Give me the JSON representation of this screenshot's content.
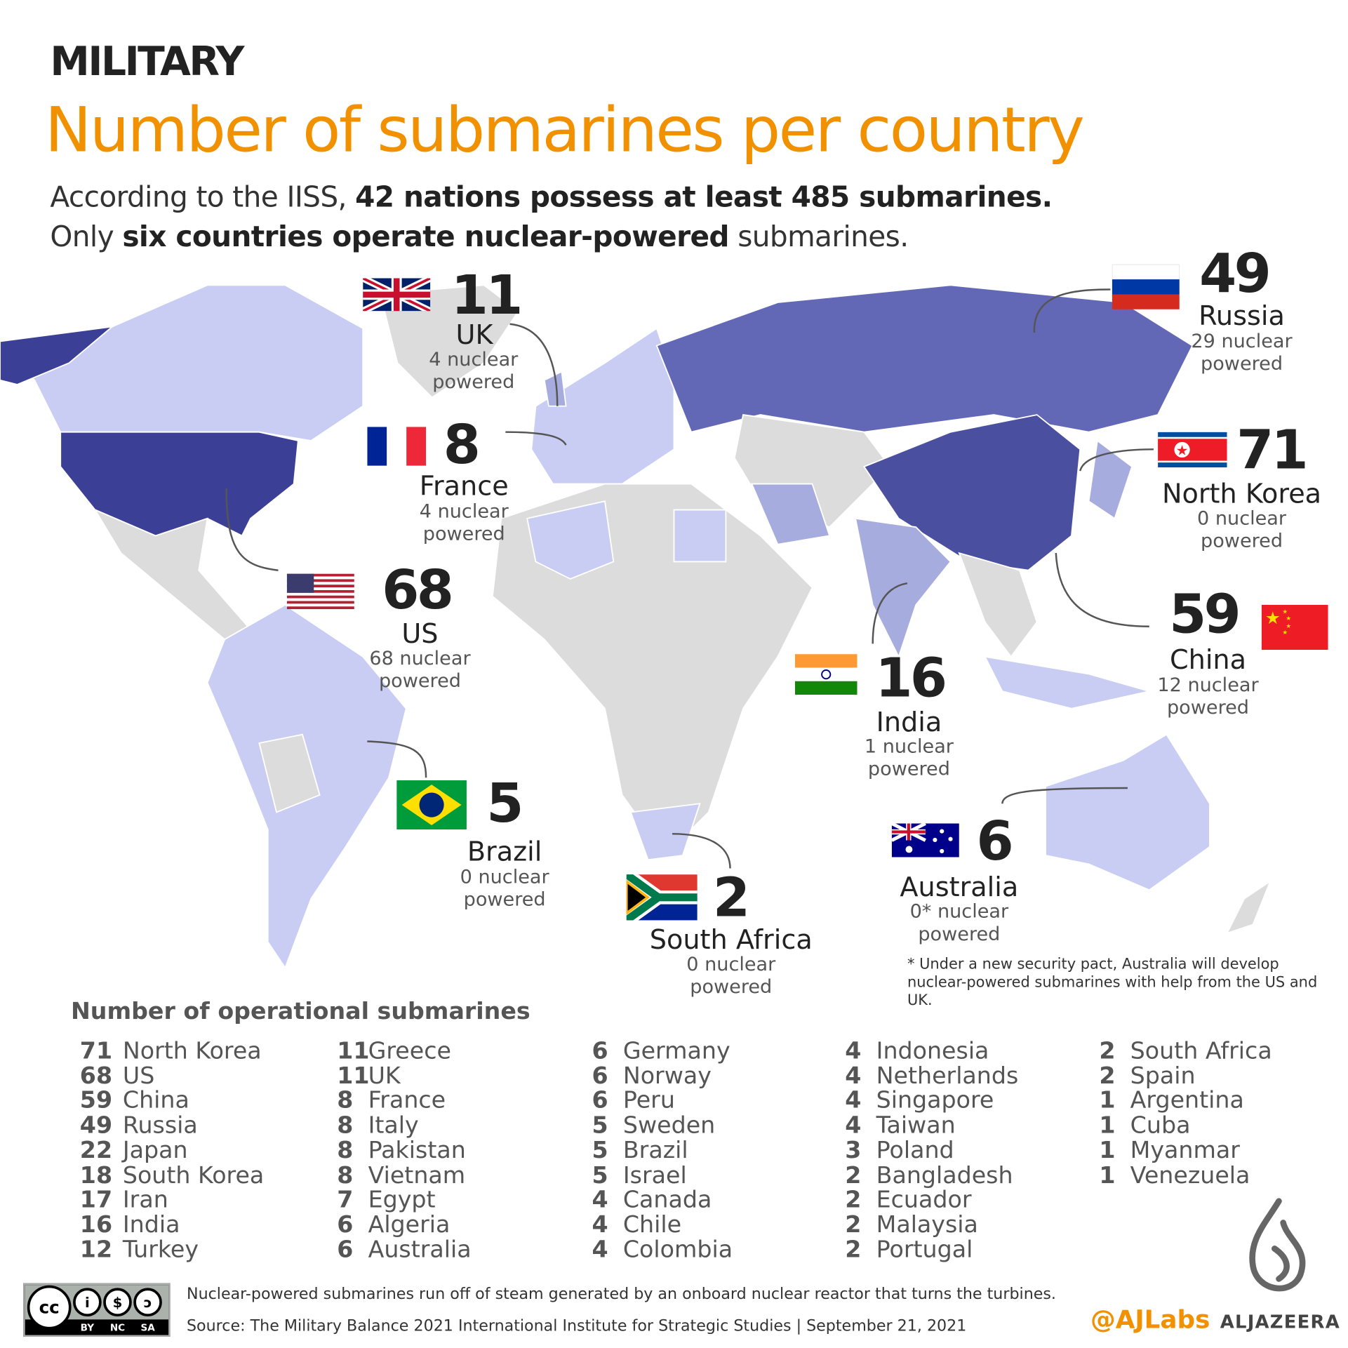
{
  "header": {
    "section": "MILITARY",
    "title": "Number of submarines per country",
    "subtitle_line1_pre": "According to the IISS, ",
    "subtitle_line1_bold": "42 nations possess at least 485 submarines.",
    "subtitle_line2_pre": "Only ",
    "subtitle_line2_bold": "six countries operate nuclear-powered",
    "subtitle_line2_post": " submarines."
  },
  "colors": {
    "accent": "#f29100",
    "highest": "#3b3f96",
    "high": "#6268b5",
    "mid": "#a7acdf",
    "low": "#c9cdf3",
    "none": "#dcdcdc"
  },
  "callouts": [
    {
      "country": "UK",
      "total": "11",
      "nuclear": "4 nuclear",
      "suffix": "powered",
      "flag": "uk"
    },
    {
      "country": "France",
      "total": "8",
      "nuclear": "4 nuclear",
      "suffix": "powered",
      "flag": "france"
    },
    {
      "country": "US",
      "total": "68",
      "nuclear": "68 nuclear",
      "suffix": "powered",
      "flag": "us"
    },
    {
      "country": "Brazil",
      "total": "5",
      "nuclear": "0 nuclear",
      "suffix": "powered",
      "flag": "brazil"
    },
    {
      "country": "South Africa",
      "total": "2",
      "nuclear": "0 nuclear",
      "suffix": "powered",
      "flag": "south-africa"
    },
    {
      "country": "India",
      "total": "16",
      "nuclear": "1 nuclear",
      "suffix": "powered",
      "flag": "india"
    },
    {
      "country": "Australia",
      "total": "6",
      "nuclear": "0* nuclear",
      "suffix": "powered",
      "flag": "australia"
    },
    {
      "country": "Russia",
      "total": "49",
      "nuclear": "29 nuclear",
      "suffix": "powered",
      "flag": "russia"
    },
    {
      "country": "North Korea",
      "total": "71",
      "nuclear": "0 nuclear",
      "suffix": "powered",
      "flag": "north-korea"
    },
    {
      "country": "China",
      "total": "59",
      "nuclear": "12 nuclear",
      "suffix": "powered",
      "flag": "china"
    }
  ],
  "footnote": "* Under a new security pact, Australia will develop nuclear-powered submarines with help from the US and UK.",
  "list": {
    "heading": "Number of operational submarines",
    "columns": [
      [
        [
          "71",
          "North Korea"
        ],
        [
          "68",
          "US"
        ],
        [
          "59",
          "China"
        ],
        [
          "49",
          "Russia"
        ],
        [
          "22",
          "Japan"
        ],
        [
          "18",
          "South Korea"
        ],
        [
          "17",
          "Iran"
        ],
        [
          "16",
          "India"
        ],
        [
          "12",
          "Turkey"
        ]
      ],
      [
        [
          "11",
          "Greece"
        ],
        [
          "11",
          "UK"
        ],
        [
          "8",
          "France"
        ],
        [
          "8",
          "Italy"
        ],
        [
          "8",
          "Pakistan"
        ],
        [
          "8",
          "Vietnam"
        ],
        [
          "7",
          "Egypt"
        ],
        [
          "6",
          "Algeria"
        ],
        [
          "6",
          "Australia"
        ]
      ],
      [
        [
          "6",
          "Germany"
        ],
        [
          "6",
          "Norway"
        ],
        [
          "6",
          "Peru"
        ],
        [
          "5",
          "Sweden"
        ],
        [
          "5",
          "Brazil"
        ],
        [
          "5",
          "Israel"
        ],
        [
          "4",
          "Canada"
        ],
        [
          "4",
          "Chile"
        ],
        [
          "4",
          "Colombia"
        ]
      ],
      [
        [
          "4",
          "Indonesia"
        ],
        [
          "4",
          "Netherlands"
        ],
        [
          "4",
          "Singapore"
        ],
        [
          "4",
          "Taiwan"
        ],
        [
          "3",
          "Poland"
        ],
        [
          "2",
          "Bangladesh"
        ],
        [
          "2",
          "Ecuador"
        ],
        [
          "2",
          "Malaysia"
        ],
        [
          "2",
          "Portugal"
        ]
      ],
      [
        [
          "2",
          "South Africa"
        ],
        [
          "2",
          "Spain"
        ],
        [
          "1",
          "Argentina"
        ],
        [
          "1",
          "Cuba"
        ],
        [
          "1",
          "Myanmar"
        ],
        [
          "1",
          "Venezuela"
        ]
      ]
    ]
  },
  "footer": {
    "note": "Nuclear-powered submarines run off of steam generated by an onboard nuclear reactor that turns the turbines.",
    "source": "Source:  The Military Balance 2021  International Institute for Strategic Studies |  September 21, 2021",
    "handle": "@AJLabs",
    "brand": "ALJAZEERA",
    "license": [
      "BY",
      "NC",
      "SA"
    ]
  }
}
